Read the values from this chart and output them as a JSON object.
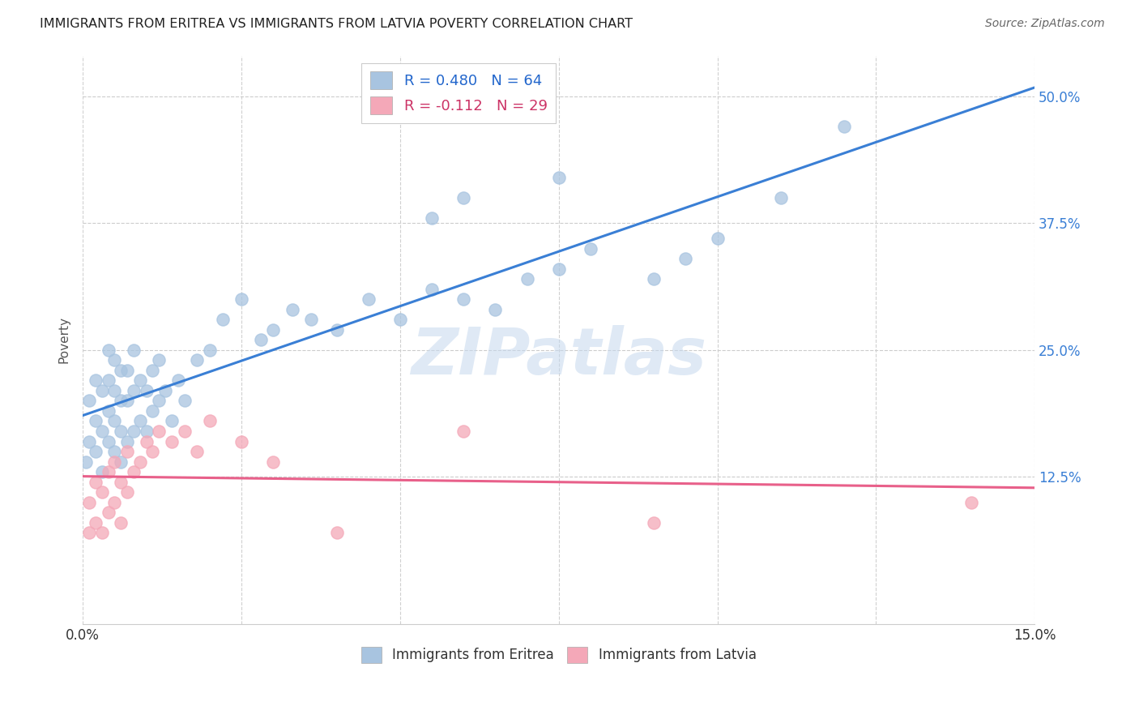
{
  "title": "IMMIGRANTS FROM ERITREA VS IMMIGRANTS FROM LATVIA POVERTY CORRELATION CHART",
  "source": "Source: ZipAtlas.com",
  "ylabel": "Poverty",
  "xlim": [
    0.0,
    0.15
  ],
  "ylim": [
    -0.02,
    0.54
  ],
  "xticks": [
    0.0,
    0.025,
    0.05,
    0.075,
    0.1,
    0.125,
    0.15
  ],
  "yticks": [
    0.125,
    0.25,
    0.375,
    0.5
  ],
  "yticklabels": [
    "12.5%",
    "25.0%",
    "37.5%",
    "50.0%"
  ],
  "eritrea_R": 0.48,
  "eritrea_N": 64,
  "latvia_R": -0.112,
  "latvia_N": 29,
  "eritrea_color": "#a8c4e0",
  "latvia_color": "#f4a8b8",
  "eritrea_line_color": "#3a7fd5",
  "latvia_line_color": "#e8608a",
  "watermark": "ZIPatlas",
  "eritrea_x": [
    0.0005,
    0.001,
    0.001,
    0.002,
    0.002,
    0.002,
    0.003,
    0.003,
    0.003,
    0.004,
    0.004,
    0.004,
    0.004,
    0.005,
    0.005,
    0.005,
    0.005,
    0.006,
    0.006,
    0.006,
    0.006,
    0.007,
    0.007,
    0.007,
    0.008,
    0.008,
    0.008,
    0.009,
    0.009,
    0.01,
    0.01,
    0.011,
    0.011,
    0.012,
    0.012,
    0.013,
    0.014,
    0.015,
    0.016,
    0.018,
    0.02,
    0.022,
    0.025,
    0.028,
    0.03,
    0.033,
    0.036,
    0.04,
    0.045,
    0.05,
    0.055,
    0.06,
    0.065,
    0.07,
    0.075,
    0.08,
    0.09,
    0.095,
    0.1,
    0.11,
    0.055,
    0.06,
    0.075,
    0.12
  ],
  "eritrea_y": [
    0.14,
    0.16,
    0.2,
    0.15,
    0.18,
    0.22,
    0.13,
    0.17,
    0.21,
    0.16,
    0.19,
    0.22,
    0.25,
    0.15,
    0.18,
    0.21,
    0.24,
    0.14,
    0.17,
    0.2,
    0.23,
    0.16,
    0.2,
    0.23,
    0.17,
    0.21,
    0.25,
    0.18,
    0.22,
    0.17,
    0.21,
    0.19,
    0.23,
    0.2,
    0.24,
    0.21,
    0.18,
    0.22,
    0.2,
    0.24,
    0.25,
    0.28,
    0.3,
    0.26,
    0.27,
    0.29,
    0.28,
    0.27,
    0.3,
    0.28,
    0.31,
    0.3,
    0.29,
    0.32,
    0.33,
    0.35,
    0.32,
    0.34,
    0.36,
    0.4,
    0.38,
    0.4,
    0.42,
    0.47
  ],
  "latvia_x": [
    0.001,
    0.001,
    0.002,
    0.002,
    0.003,
    0.003,
    0.004,
    0.004,
    0.005,
    0.005,
    0.006,
    0.006,
    0.007,
    0.007,
    0.008,
    0.009,
    0.01,
    0.011,
    0.012,
    0.014,
    0.016,
    0.018,
    0.02,
    0.025,
    0.03,
    0.04,
    0.06,
    0.09,
    0.14
  ],
  "latvia_y": [
    0.1,
    0.07,
    0.12,
    0.08,
    0.11,
    0.07,
    0.13,
    0.09,
    0.14,
    0.1,
    0.12,
    0.08,
    0.15,
    0.11,
    0.13,
    0.14,
    0.16,
    0.15,
    0.17,
    0.16,
    0.17,
    0.15,
    0.18,
    0.16,
    0.14,
    0.07,
    0.17,
    0.08,
    0.1
  ]
}
